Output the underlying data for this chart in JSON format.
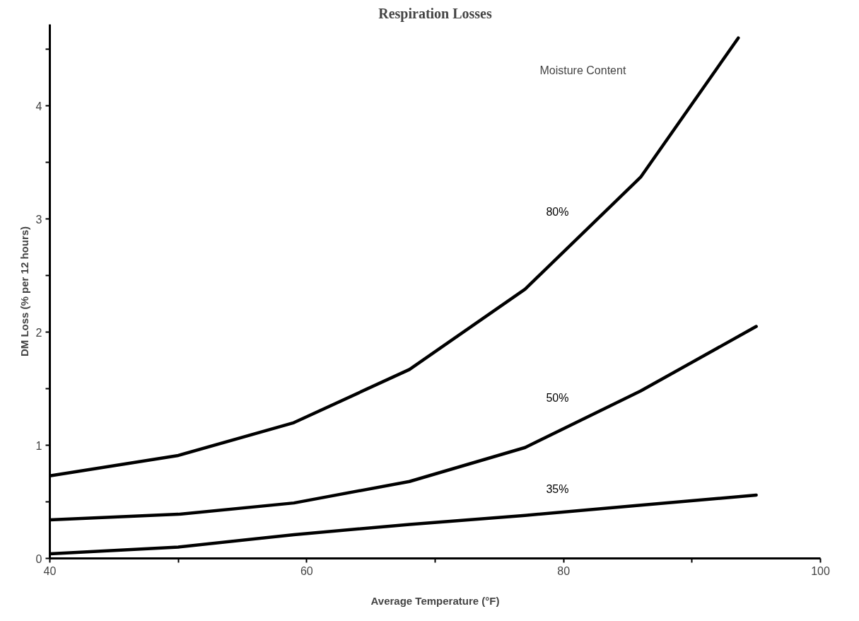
{
  "chart_data": {
    "type": "line",
    "title": "Respiration Losses",
    "xlabel": "Average Temperature (°F)",
    "ylabel": "DM Loss (% per 12 hours)",
    "legend_title": "Moisture Content",
    "x": [
      40,
      50,
      59,
      68,
      77,
      86,
      95
    ],
    "series": [
      {
        "name": "80%",
        "color": "#000000",
        "x": [
          40,
          50,
          59,
          68,
          77,
          86,
          93.6
        ],
        "values": [
          0.73,
          0.91,
          1.2,
          1.67,
          2.38,
          3.37,
          4.6
        ]
      },
      {
        "name": "50%",
        "color": "#000000",
        "values": [
          0.34,
          0.39,
          0.49,
          0.68,
          0.98,
          1.48,
          2.05
        ]
      },
      {
        "name": "35%",
        "color": "#000000",
        "values": [
          0.04,
          0.1,
          0.21,
          0.3,
          0.38,
          0.47,
          0.56
        ]
      }
    ],
    "xlim": [
      40,
      100
    ],
    "ylim": [
      0,
      4.72
    ],
    "xticks": [
      40,
      {
        "value": 50,
        "label": null
      },
      60,
      {
        "value": 70,
        "label": null
      },
      80,
      {
        "value": 90,
        "label": null
      },
      100
    ],
    "yticks": [
      0,
      {
        "value": 0.5,
        "label": null
      },
      1,
      {
        "value": 1.5,
        "label": null
      },
      2,
      {
        "value": 2.5,
        "label": null
      },
      3,
      {
        "value": 3.5,
        "label": null
      },
      4,
      {
        "value": 4.5,
        "label": null
      }
    ],
    "grid": false,
    "marker": "none",
    "line_style": "solid"
  }
}
